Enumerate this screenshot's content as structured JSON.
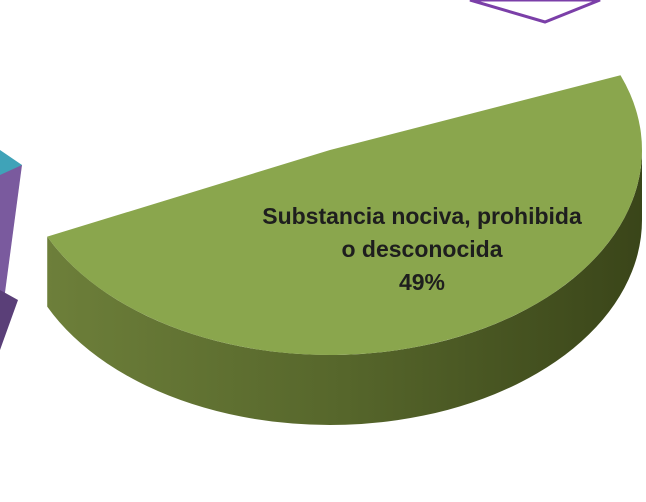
{
  "chart_data": {
    "type": "pie",
    "categories": [
      "Substancia nociva, prohibida o desconocida"
    ],
    "values": [
      49
    ],
    "value_labels": [
      "49%"
    ],
    "colors": [
      "#8aa64d"
    ]
  }
}
